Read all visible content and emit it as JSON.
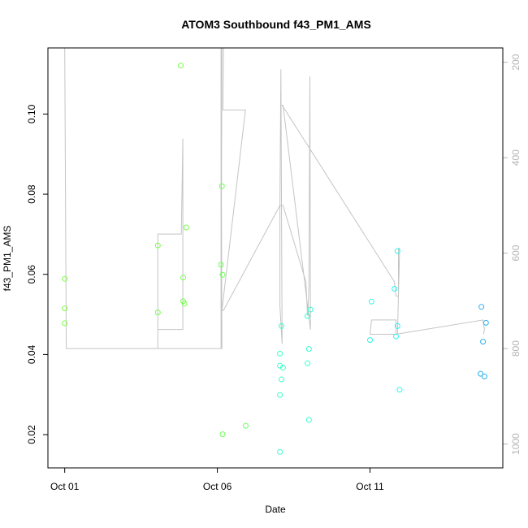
{
  "chart_data": {
    "type": "scatter",
    "title": "ATOM3 Southbound f43_PM1_AMS",
    "xlabel": "Date",
    "ylabel": "f43_PM1_AMS",
    "x_ticks": [
      {
        "value": 0,
        "label": "Oct 01"
      },
      {
        "value": 5,
        "label": "Oct 06"
      },
      {
        "value": 10,
        "label": "Oct 11"
      }
    ],
    "xlim": [
      -0.55,
      14.35
    ],
    "ylim": [
      0.0117,
      0.1165
    ],
    "y_ticks": [
      0.02,
      0.04,
      0.06,
      0.08,
      0.1
    ],
    "y_tick_labels": [
      "0.02",
      "0.04",
      "0.06",
      "0.08",
      "0.10"
    ],
    "y2_ticks": [
      200,
      400,
      600,
      800,
      1000
    ],
    "y2_tick_labels": [
      "200",
      "400",
      "600",
      "800",
      "1000"
    ],
    "y2lim": [
      1050,
      170
    ],
    "y2_inverted": true,
    "y2_color": "#b5b5b5",
    "line_color": "#c4c4c4",
    "points": [
      {
        "x": 0.0,
        "y": 0.0589,
        "color": "#7cff45"
      },
      {
        "x": 0.0,
        "y": 0.0515,
        "color": "#7cff45"
      },
      {
        "x": 0.0,
        "y": 0.0478,
        "color": "#7cff45"
      },
      {
        "x": 3.05,
        "y": 0.0672,
        "color": "#78ff48"
      },
      {
        "x": 3.05,
        "y": 0.0505,
        "color": "#78ff48"
      },
      {
        "x": 3.8,
        "y": 0.1121,
        "color": "#74ff4c"
      },
      {
        "x": 3.88,
        "y": 0.0592,
        "color": "#74ff4c"
      },
      {
        "x": 3.88,
        "y": 0.0533,
        "color": "#74ff4c"
      },
      {
        "x": 3.92,
        "y": 0.0527,
        "color": "#74ff4c"
      },
      {
        "x": 3.98,
        "y": 0.0717,
        "color": "#74ff4c"
      },
      {
        "x": 5.15,
        "y": 0.082,
        "color": "#6dff55"
      },
      {
        "x": 5.12,
        "y": 0.0624,
        "color": "#6dff55"
      },
      {
        "x": 5.17,
        "y": 0.0599,
        "color": "#6dff55"
      },
      {
        "x": 5.17,
        "y": 0.0201,
        "color": "#6dff55"
      },
      {
        "x": 5.93,
        "y": 0.0222,
        "color": "#68ff5c"
      },
      {
        "x": 7.05,
        "y": 0.0402,
        "color": "#3bffc8"
      },
      {
        "x": 7.05,
        "y": 0.0372,
        "color": "#3bffc8"
      },
      {
        "x": 7.15,
        "y": 0.0367,
        "color": "#3bffc8"
      },
      {
        "x": 7.1,
        "y": 0.0338,
        "color": "#3bffc8"
      },
      {
        "x": 7.05,
        "y": 0.0299,
        "color": "#3bffc8"
      },
      {
        "x": 7.1,
        "y": 0.0471,
        "color": "#3bffc8"
      },
      {
        "x": 7.05,
        "y": 0.0157,
        "color": "#3bffc8"
      },
      {
        "x": 7.95,
        "y": 0.0496,
        "color": "#36ffd2"
      },
      {
        "x": 8.05,
        "y": 0.0512,
        "color": "#36ffd2"
      },
      {
        "x": 8.0,
        "y": 0.0414,
        "color": "#36ffd2"
      },
      {
        "x": 7.95,
        "y": 0.0378,
        "color": "#36ffd2"
      },
      {
        "x": 8.0,
        "y": 0.0237,
        "color": "#36ffd2"
      },
      {
        "x": 10.05,
        "y": 0.0532,
        "color": "#2cfae8"
      },
      {
        "x": 10.0,
        "y": 0.0436,
        "color": "#2cfae8"
      },
      {
        "x": 10.8,
        "y": 0.0564,
        "color": "#28f6f0"
      },
      {
        "x": 10.9,
        "y": 0.0658,
        "color": "#28f6f0"
      },
      {
        "x": 10.9,
        "y": 0.0471,
        "color": "#28f6f0"
      },
      {
        "x": 10.85,
        "y": 0.0445,
        "color": "#28f6f0"
      },
      {
        "x": 10.97,
        "y": 0.0312,
        "color": "#28f6f0"
      },
      {
        "x": 13.65,
        "y": 0.0519,
        "color": "#2ab0f0"
      },
      {
        "x": 13.8,
        "y": 0.0479,
        "color": "#2ab0f0"
      },
      {
        "x": 13.7,
        "y": 0.0432,
        "color": "#2ab0f0"
      },
      {
        "x": 13.62,
        "y": 0.0352,
        "color": "#2ab0f0"
      },
      {
        "x": 13.75,
        "y": 0.0345,
        "color": "#2ab0f0"
      }
    ],
    "altitude_series": {
      "name": "",
      "x": [
        0.0,
        0.0,
        0.05,
        3.05,
        3.05,
        3.82,
        3.87,
        3.87,
        3.82,
        3.05,
        3.05,
        5.15,
        5.12,
        5.12,
        5.12,
        5.15,
        5.2,
        5.2,
        5.18,
        5.92,
        5.92,
        5.15,
        5.15,
        5.2,
        7.05,
        7.05,
        7.08,
        7.08,
        7.12,
        7.12,
        7.05,
        7.05,
        7.1,
        7.15,
        7.9,
        7.95,
        7.95,
        7.97,
        8.0,
        8.0,
        8.03,
        8.03,
        8.05,
        8.05,
        7.15,
        7.12,
        10.8,
        10.85,
        10.9,
        10.93,
        10.93,
        10.97,
        10.9,
        10.0,
        10.05,
        10.85,
        10.85,
        13.7,
        13.75,
        13.72
      ],
      "y": [
        170,
        170,
        800,
        800,
        560,
        560,
        360,
        760,
        760,
        760,
        800,
        800,
        170,
        170,
        800,
        170,
        170,
        170,
        300,
        300,
        300,
        720,
        720,
        720,
        500,
        500,
        215,
        215,
        790,
        790,
        710,
        500,
        500,
        500,
        660,
        730,
        730,
        730,
        670,
        670,
        230,
        230,
        760,
        760,
        290,
        290,
        660,
        690,
        690,
        690,
        590,
        590,
        770,
        770,
        740,
        740,
        770,
        740,
        760,
        770
      ]
    }
  }
}
